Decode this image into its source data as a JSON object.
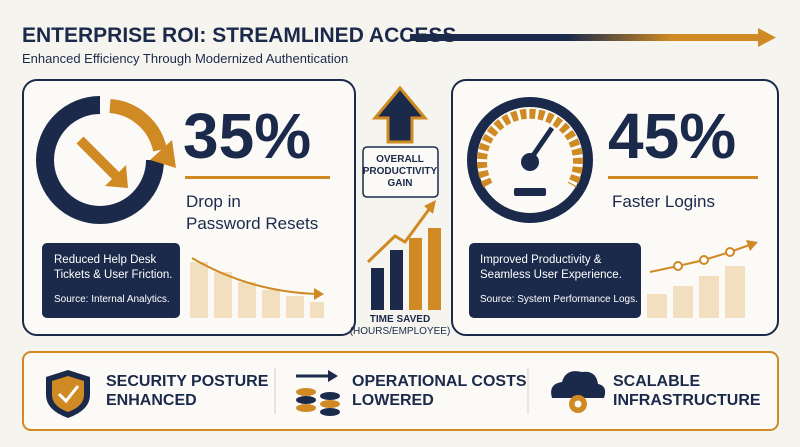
{
  "header": {
    "title": "ENTERPRISE ROI: STREAMLINED ACCESS",
    "subtitle": "Enhanced Efficiency Through Modernized Authentication"
  },
  "left_card": {
    "stat": "35%",
    "label": [
      "Drop in",
      "Password Resets"
    ],
    "note": [
      "Reduced Help Desk",
      "Tickets & User Friction."
    ],
    "source": "Source: Internal Analytics."
  },
  "center": {
    "gain_label": [
      "OVERALL",
      "PRODUCTIVITY",
      "GAIN"
    ],
    "chart_label": [
      "TIME SAVED",
      "(HOURS/EMPLOYEE)"
    ]
  },
  "right_card": {
    "stat": "45%",
    "label": [
      "Faster Logins"
    ],
    "note": [
      "Improved Productivity &",
      "Seamless User Experience."
    ],
    "source": "Source: System Performance Logs."
  },
  "footer": {
    "items": [
      [
        "SECURITY POSTURE",
        "ENHANCED"
      ],
      [
        "OPERATIONAL COSTS",
        "LOWERED"
      ],
      [
        "SCALABLE",
        "INFRASTRUCTURE"
      ]
    ]
  }
}
